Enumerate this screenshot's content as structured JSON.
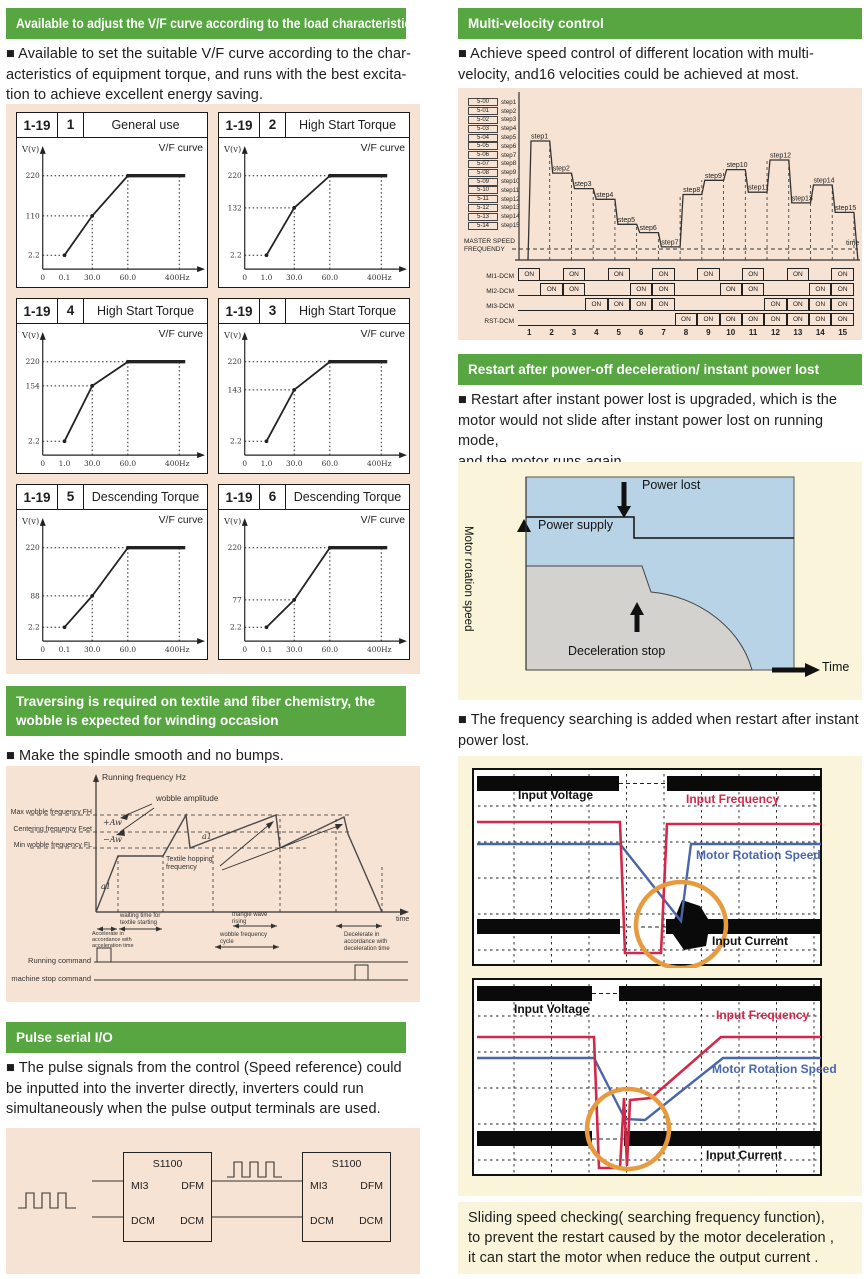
{
  "colors": {
    "green": "#58a642",
    "panel_pink": "#f6e3d3",
    "panel_cream": "#f9f4da",
    "red": "#d2294a",
    "blue": "#4a66aa",
    "orange": "#e79b3e",
    "power_blue": "#b9d3e6",
    "power_gray": "#d3d2cf"
  },
  "vf": {
    "header": "Available to adjust the V/F curve according to the load characteristics",
    "body": [
      "■ Available to set the suitable V/F curve according to the char-",
      "acteristics of equipment torque, and runs with the best excita-",
      "tion to achieve excellent energy saving."
    ],
    "charts": [
      {
        "code": "1-19",
        "value": "1",
        "use": "General use",
        "curve_title": "V/F curve",
        "ylabel": "V(v)",
        "vmax": 220,
        "vmid": 110,
        "vmin": 2.2,
        "x_ticks": [
          "0",
          "0.1",
          "30.0",
          "60.0",
          "400Hz"
        ]
      },
      {
        "code": "1-19",
        "value": "2",
        "use": "High Start Torque",
        "curve_title": "V/F curve",
        "ylabel": "V(v)",
        "vmax": 220,
        "vmid": 132,
        "vmin": 2.2,
        "x_ticks": [
          "0",
          "1.0",
          "30.0",
          "60.0",
          "400Hz"
        ]
      },
      {
        "code": "1-19",
        "value": "4",
        "use": "High Start Torque",
        "curve_title": "V/F curve",
        "ylabel": "V(v)",
        "vmax": 220,
        "vmid": 154,
        "vmin": 2.2,
        "x_ticks": [
          "0",
          "1.0",
          "30.0",
          "60.0",
          "400Hz"
        ]
      },
      {
        "code": "1-19",
        "value": "3",
        "use": "High Start Torque",
        "curve_title": "V/F curve",
        "ylabel": "V(v)",
        "vmax": 220,
        "vmid": 143,
        "vmin": 2.2,
        "x_ticks": [
          "0",
          "1.0",
          "30.0",
          "60.0",
          "400Hz"
        ]
      },
      {
        "code": "1-19",
        "value": "5",
        "use": "Descending Torque",
        "curve_title": "V/F curve",
        "ylabel": "V(v)",
        "vmax": 220,
        "vmid": 88,
        "vmin": 2.2,
        "x_ticks": [
          "0",
          "0.1",
          "30.0",
          "60.0",
          "400Hz"
        ]
      },
      {
        "code": "1-19",
        "value": "6",
        "use": "Descending Torque",
        "curve_title": "V/F curve",
        "ylabel": "V(v)",
        "vmax": 220,
        "vmid": 77,
        "vmin": 2.2,
        "x_ticks": [
          "0",
          "0.1",
          "30.0",
          "60.0",
          "400Hz"
        ]
      }
    ]
  },
  "wobble": {
    "header": "Traversing is required on textile and fiber chemistry, the wobble is expected for winding occasion",
    "body": [
      "■ Make the spindle smooth and no bumps."
    ],
    "labels": {
      "yaxis": "Running frequency Hz",
      "fh": "Max wobble frequency FH",
      "fset": "Centering frequency Fset",
      "fl": "Min wobble frequency FL",
      "plus": "+Aw",
      "minus": "−Aw",
      "amplitude": "wobble amplitude",
      "a1a": "a1",
      "a1b": "a1",
      "hopping": "Textile hopping frequency",
      "accel": "Accelerate in accordance with acceleration time",
      "waiting": "waiting time for textile starting",
      "triangle": "triangle wave rising",
      "cycle": "wobble frequency cycle",
      "decel": "Decelerate in accordance with deceleration time",
      "time": "time",
      "running": "Running command",
      "stop": "machine stop command"
    }
  },
  "pulse": {
    "header": "Pulse serial I/O",
    "body": [
      "■ The pulse signals from the control (Speed reference) could",
      "be inputted into the inverter directly, inverters could run",
      "simultaneously when the pulse output terminals are used."
    ],
    "boxes": [
      {
        "title": "S1100",
        "tl": "MI3",
        "tr": "DFM",
        "bl": "DCM",
        "br": "DCM"
      },
      {
        "title": "S1100",
        "tl": "MI3",
        "tr": "DFM",
        "bl": "DCM",
        "br": "DCM"
      }
    ]
  },
  "multi": {
    "header": "Multi-velocity control",
    "body": [
      "■ Achieve speed control of different location with multi-",
      "velocity, and16 velocities could be achieved at most."
    ],
    "legend": [
      {
        "code": "5-00",
        "step": "step1"
      },
      {
        "code": "5-01",
        "step": "step2"
      },
      {
        "code": "5-02",
        "step": "step3"
      },
      {
        "code": "5-03",
        "step": "step4"
      },
      {
        "code": "5-04",
        "step": "step5"
      },
      {
        "code": "5-05",
        "step": "step6"
      },
      {
        "code": "5-06",
        "step": "step7"
      },
      {
        "code": "5-07",
        "step": "step8"
      },
      {
        "code": "5-08",
        "step": "step9"
      },
      {
        "code": "5-09",
        "step": "step10"
      },
      {
        "code": "5-10",
        "step": "step11"
      },
      {
        "code": "5-11",
        "step": "step12"
      },
      {
        "code": "5-12",
        "step": "step13"
      },
      {
        "code": "5-13",
        "step": "step14"
      },
      {
        "code": "5-14",
        "step": "step15"
      }
    ],
    "master_label": "MASTER SPEED FREQUENDY",
    "time_label": "time",
    "on_label": "ON",
    "steps": [
      {
        "name": "step1",
        "level": 1.0
      },
      {
        "name": "step2",
        "level": 0.73
      },
      {
        "name": "step3",
        "level": 0.6
      },
      {
        "name": "step4",
        "level": 0.51
      },
      {
        "name": "step5",
        "level": 0.3
      },
      {
        "name": "step6",
        "level": 0.23
      },
      {
        "name": "step7",
        "level": 0.11
      },
      {
        "name": "step8",
        "level": 0.55
      },
      {
        "name": "step9",
        "level": 0.67
      },
      {
        "name": "step10",
        "level": 0.76
      },
      {
        "name": "step11",
        "level": 0.57
      },
      {
        "name": "step12",
        "level": 0.84
      },
      {
        "name": "step13",
        "level": 0.48
      },
      {
        "name": "step14",
        "level": 0.63
      },
      {
        "name": "step15",
        "level": 0.4
      }
    ],
    "signals": [
      {
        "label": "MI1-DCM",
        "on": [
          1,
          3,
          5,
          7,
          9,
          11,
          13,
          15
        ]
      },
      {
        "label": "MI2-DCM",
        "on": [
          2,
          3,
          6,
          7,
          10,
          11,
          14,
          15
        ]
      },
      {
        "label": "MI3-DCM",
        "on": [
          4,
          5,
          6,
          7,
          12,
          13,
          14,
          15
        ]
      },
      {
        "label": "RST-DCM",
        "on": [
          8,
          9,
          10,
          11,
          12,
          13,
          14,
          15
        ]
      }
    ],
    "x_ticks": [
      "1",
      "2",
      "3",
      "4",
      "5",
      "6",
      "7",
      "8",
      "9",
      "10",
      "11",
      "12",
      "13",
      "14",
      "15"
    ]
  },
  "restart": {
    "header": "Restart after power-off deceleration/ instant power lost",
    "body": [
      "■ Restart after instant power lost is upgraded, which is the",
      "motor would not slide after instant power lost on running mode,",
      "and the motor runs again."
    ],
    "power_lost": "Power lost",
    "power_supply": "Power supply",
    "decel_stop": "Deceleration stop",
    "motor_speed_axis": "Motor rotation speed",
    "time_axis": "Time",
    "body2": [
      "■ The frequency searching is added when restart after instant",
      "power lost."
    ],
    "scope_labels": {
      "voltage": "Input Voltage",
      "frequency": "Input Frequency",
      "speed": "Motor Rotation Speed",
      "current": "Input Current"
    },
    "note": [
      "Sliding speed checking( searching frequency function),",
      "to prevent the restart caused by the motor deceleration ,",
      " it can start the motor when reduce the output current ."
    ]
  }
}
